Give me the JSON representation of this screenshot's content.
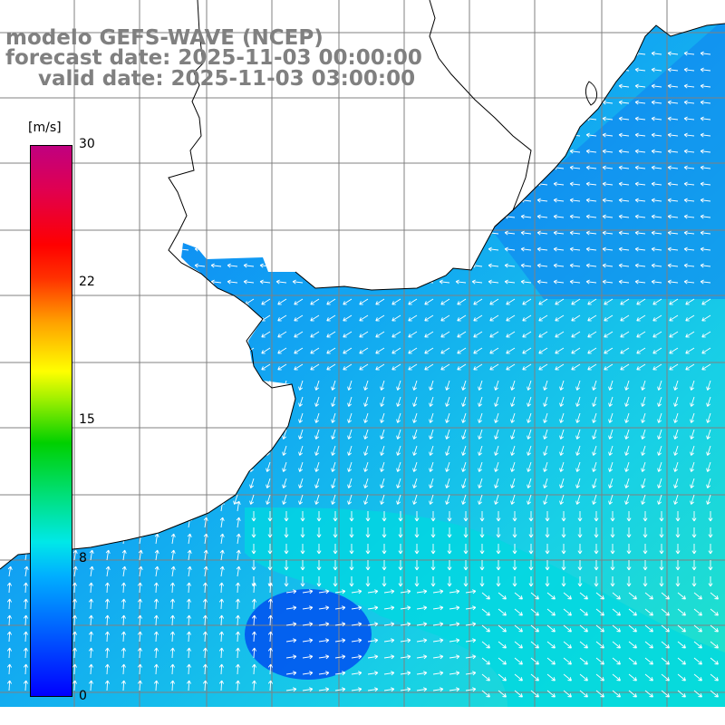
{
  "title": {
    "model": "modelo GEFS-WAVE (NCEP)",
    "forecast": "forecast date: 2025-11-03 00:00:00",
    "valid": "valid date: 2025-11-03 03:00:00"
  },
  "colorbar": {
    "unit": "[m/s]",
    "ticks": [
      "30",
      "22",
      "15",
      "8",
      "0"
    ],
    "range": [
      0,
      30
    ],
    "colors": [
      "#0000ff",
      "#00b0ff",
      "#00e8e8",
      "#00d000",
      "#ffff00",
      "#ff0000",
      "#c00080"
    ]
  },
  "map": {
    "field": "wind speed",
    "field_colors": {
      "land": "#ffffff",
      "weak": "#0050f0",
      "moderate": "#00a0f0",
      "stronger": "#00d8e0",
      "coastline": "#000000",
      "grid": "#808080",
      "arrows": "#ffffff"
    }
  }
}
